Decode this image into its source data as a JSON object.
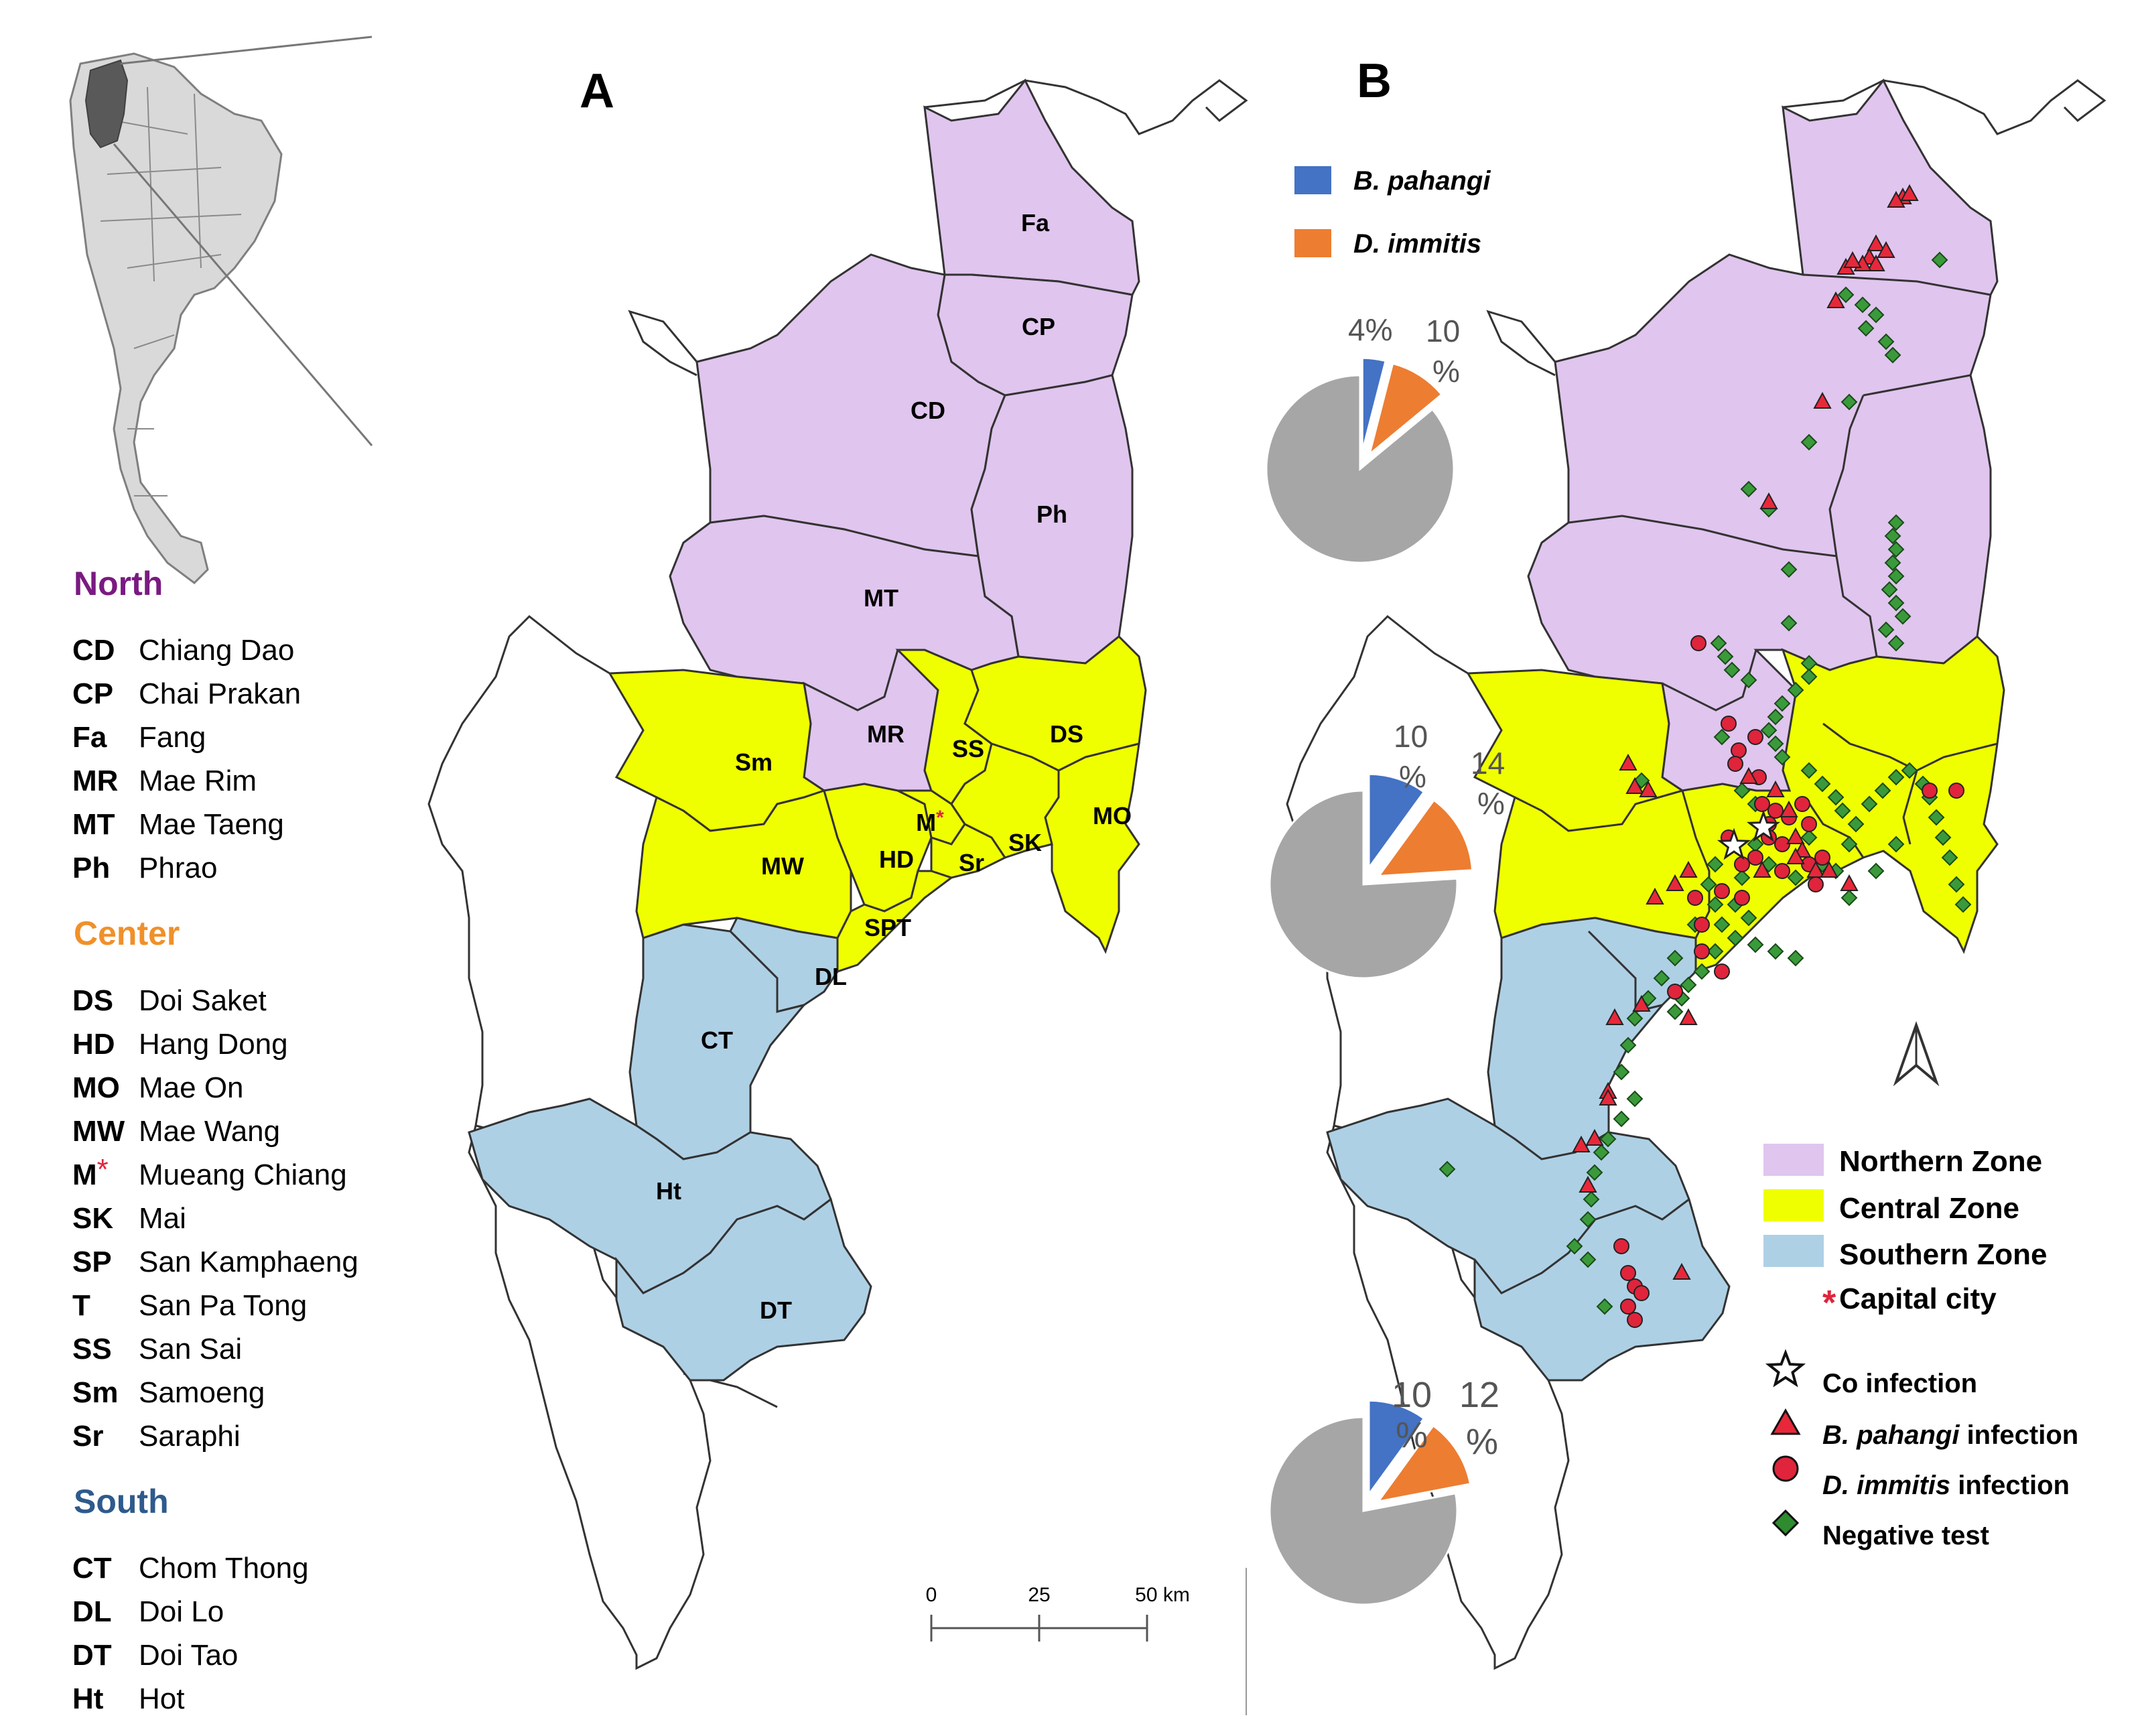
{
  "panels": {
    "a_label": "A",
    "b_label": "B"
  },
  "legend_left": {
    "groups": [
      {
        "title": "North",
        "color": "#7a1a82",
        "items": [
          {
            "abbr": "CD",
            "name": "Chiang Dao"
          },
          {
            "abbr": "CP",
            "name": "Chai Prakan"
          },
          {
            "abbr": "Fa",
            "name": "Fang"
          },
          {
            "abbr": "MR",
            "name": "Mae Rim"
          },
          {
            "abbr": "MT",
            "name": "Mae Taeng"
          },
          {
            "abbr": "Ph",
            "name": "Phrao"
          }
        ]
      },
      {
        "title": "Center",
        "color": "#f0902a",
        "items": [
          {
            "abbr": "DS",
            "name": "Doi Saket"
          },
          {
            "abbr": "HD",
            "name": "Hang Dong"
          },
          {
            "abbr": "MO",
            "name": "Mae On"
          },
          {
            "abbr": "MW",
            "name": "Mae Wang"
          },
          {
            "abbr": "M",
            "abbr_mark": "*",
            "name": "Mueang Chiang"
          },
          {
            "abbr": "SK",
            "name": "Mai"
          },
          {
            "abbr": "SP",
            "name": "San Kamphaeng"
          },
          {
            "abbr": "T",
            "name": "San Pa Tong"
          },
          {
            "abbr": "SS",
            "name": "San Sai"
          },
          {
            "abbr": "Sm",
            "name": "Samoeng"
          },
          {
            "abbr": "Sr",
            "name": "Saraphi"
          }
        ]
      },
      {
        "title": "South",
        "color": "#2e5a8c",
        "items": [
          {
            "abbr": "CT",
            "name": "Chom Thong"
          },
          {
            "abbr": "DL",
            "name": "Doi Lo"
          },
          {
            "abbr": "DT",
            "name": "Doi Tao"
          },
          {
            "abbr": "Ht",
            "name": "Hot"
          }
        ]
      }
    ]
  },
  "district_labels": [
    "Fa",
    "CP",
    "CD",
    "Ph",
    "MT",
    "MR",
    "SS",
    "DS",
    "Sm",
    "M",
    "MO",
    "HD",
    "MW",
    "Sr",
    "SK",
    "SPT",
    "DL",
    "CT",
    "Ht",
    "DT"
  ],
  "capital_mark": "*",
  "pie_legend": [
    {
      "label": "B. pahangi",
      "color": "#4472c4"
    },
    {
      "label": "D. immitis",
      "color": "#ed7d31"
    }
  ],
  "pies": [
    {
      "zone": "Northern",
      "b_pahangi_pct": 4,
      "d_immitis_pct": 10,
      "b_label": "4%",
      "d_label_top": "10",
      "d_label_bottom": "%"
    },
    {
      "zone": "Central",
      "b_pahangi_pct": 10,
      "d_immitis_pct": 14,
      "b_label_top": "10",
      "b_label_bottom": "%",
      "d_label_top": "14",
      "d_label_bottom": "%"
    },
    {
      "zone": "Southern",
      "b_pahangi_pct": 10,
      "d_immitis_pct": 12,
      "b_label_top": "10",
      "b_label_bottom": "%",
      "d_label_top": "12",
      "d_label_bottom": "%"
    }
  ],
  "scale_bar": {
    "ticks": [
      "0",
      "25",
      "50 km"
    ]
  },
  "zone_legend": [
    {
      "label": "Northern Zone",
      "color": "#e0c5ee"
    },
    {
      "label": "Central Zone",
      "color": "#f0ff00"
    },
    {
      "label": "Southern Zone",
      "color": "#aed0e5"
    }
  ],
  "capital_legend": {
    "symbol": "*",
    "label": "Capital city"
  },
  "marker_legend": [
    {
      "symbol": "star",
      "label": "Co infection"
    },
    {
      "symbol": "triangle",
      "label_italic": "B. pahangi",
      "label": " infection"
    },
    {
      "symbol": "circle",
      "label_italic": "D. immitis",
      "label": " infection"
    },
    {
      "symbol": "diamond",
      "label": "Negative test"
    }
  ],
  "colors": {
    "north": "#e0c5ee",
    "center": "#f0ff00",
    "south": "#aed0e5",
    "b_pahangi": "#4472c4",
    "d_immitis": "#ed7d31",
    "negative_pie": "#a6a6a6",
    "triangle": "#e8283a",
    "circle": "#e0243c",
    "diamond": "#3a9a3a"
  }
}
